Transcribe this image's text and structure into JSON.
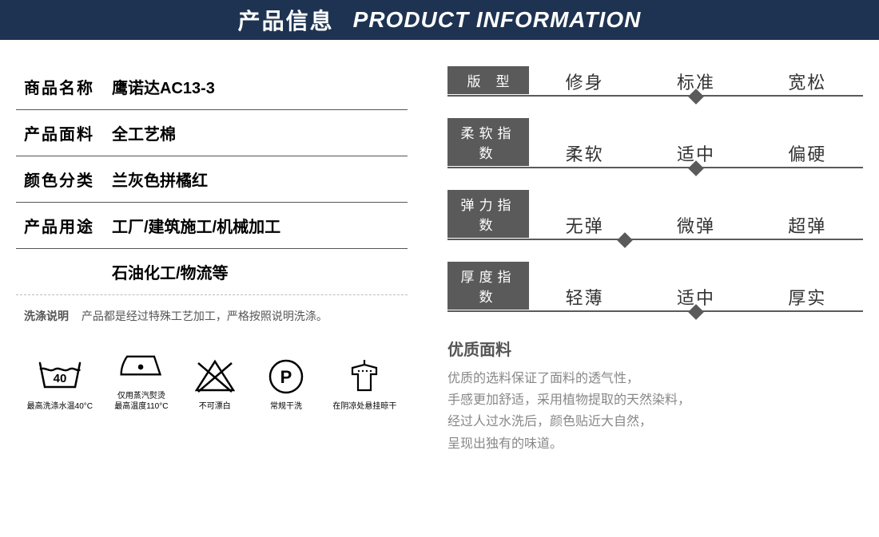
{
  "header": {
    "title_zh": "产品信息",
    "title_en": "PRODUCT INFORMATION"
  },
  "specs": [
    {
      "label": "商品名称",
      "value": "鹰诺达AC13-3"
    },
    {
      "label": "产品面料",
      "value": "全工艺棉"
    },
    {
      "label": "颜色分类",
      "value": "兰灰色拼橘红"
    },
    {
      "label": "产品用途",
      "value": "工厂/建筑施工/机械加工"
    }
  ],
  "spec_cont": "石油化工/物流等",
  "wash": {
    "label": "洗涤说明",
    "text": "产品都是经过特殊工艺加工，严格按照说明洗涤。"
  },
  "care_icons": [
    {
      "caption": "最高洗涤水温40°C"
    },
    {
      "caption": "仅用蒸汽熨烫\n最高温度110°C"
    },
    {
      "caption": "不可漂白"
    },
    {
      "caption": "常规干洗"
    },
    {
      "caption": "在阴凉处悬挂晾干"
    }
  ],
  "scales": [
    {
      "label": "版    型",
      "options": [
        "修身",
        "标准",
        "宽松"
      ],
      "marker_pos": 1,
      "marker_offset": 0.0
    },
    {
      "label": "柔软指数",
      "options": [
        "柔软",
        "适中",
        "偏硬"
      ],
      "marker_pos": 1,
      "marker_offset": 0.0
    },
    {
      "label": "弹力指数",
      "options": [
        "无弹",
        "微弹",
        "超弹"
      ],
      "marker_pos": 0,
      "marker_offset": 0.12
    },
    {
      "label": "厚度指数",
      "options": [
        "轻薄",
        "适中",
        "厚实"
      ],
      "marker_pos": 1,
      "marker_offset": 0.0
    }
  ],
  "material": {
    "title": "优质面料",
    "desc": "优质的选料保证了面料的透气性，\n手感更加舒适，采用植物提取的天然染料，\n经过人过水洗后，颜色贴近大自然，\n呈现出独有的味道。"
  },
  "colors": {
    "header_bg": "#1e3352",
    "label_bg": "#5a5a5a",
    "line": "#5a5a5a"
  }
}
